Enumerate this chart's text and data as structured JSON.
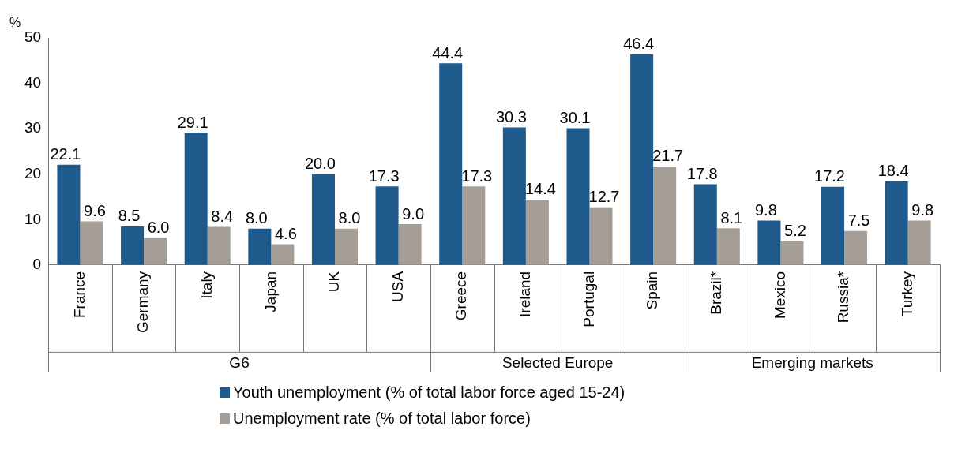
{
  "chart_data": {
    "type": "bar",
    "ylabel": "%",
    "categories": [
      "France",
      "Germany",
      "Italy",
      "Japan",
      "UK",
      "USA",
      "Greece",
      "Ireland",
      "Portugal",
      "Spain",
      "Brazil*",
      "Mexico",
      "Russia*",
      "Turkey"
    ],
    "series": [
      {
        "name": "Youth unemployment (% of total labor force aged 15-24)",
        "color": "#1f5a8c",
        "values": [
          22.1,
          8.5,
          29.1,
          8.0,
          20.0,
          17.3,
          44.4,
          30.3,
          30.1,
          46.4,
          17.8,
          9.8,
          17.2,
          18.4
        ],
        "value_labels": [
          "22.1",
          "8.5",
          "29.1",
          "8.0",
          "20.0",
          "17.3",
          "44.4",
          "30.3",
          "30.1",
          "46.4",
          "17.8",
          "9.8",
          "17.2",
          "18.4"
        ]
      },
      {
        "name": "Unemployment rate (% of total labor force)",
        "color": "#a59e96",
        "values": [
          9.6,
          6.0,
          8.4,
          4.6,
          8.0,
          9.0,
          17.3,
          14.4,
          12.7,
          21.7,
          8.1,
          5.2,
          7.5,
          9.8
        ],
        "value_labels": [
          "9.6",
          "6.0",
          "8.4",
          "4.6",
          "8.0",
          "9.0",
          "17.3",
          "14.4",
          "12.7",
          "21.7",
          "8.1",
          "5.2",
          "7.5",
          "9.8"
        ]
      }
    ],
    "ylim": [
      0,
      50
    ],
    "yticks": [
      0,
      10,
      20,
      30,
      40,
      50
    ],
    "grid": false,
    "legend": "bottom",
    "annotations": [
      "G6",
      "Selected Europe",
      "Emerging markets"
    ]
  }
}
